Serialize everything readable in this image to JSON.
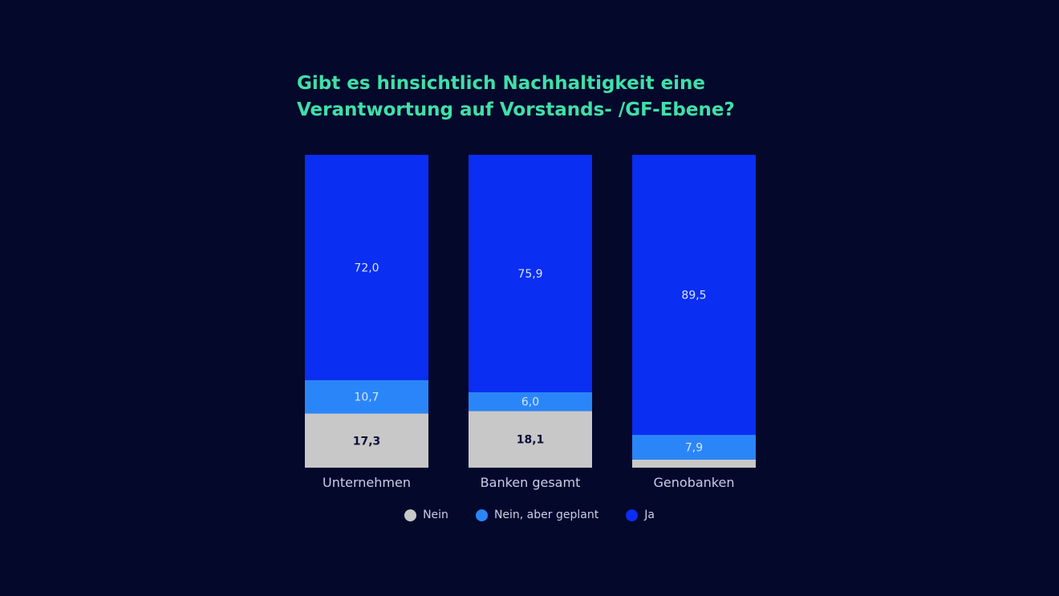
{
  "title_lines": [
    "Gibt es hinsichtlich Nachhaltigkeit eine",
    "Verantwortung auf Vorstands- /GF-Ebene?"
  ],
  "colors": {
    "background": "#04082b",
    "title": "#3fe0a8",
    "nein": "#c8c8c8",
    "geplant": "#2a86f8",
    "ja": "#0a2ef2"
  },
  "chart_data": {
    "type": "bar",
    "stacked": true,
    "orientation": "vertical",
    "categories": [
      "Unternehmen",
      "Banken gesamt",
      "Genobanken"
    ],
    "series": [
      {
        "name": "Nein",
        "values": [
          17.3,
          18.1,
          2.6
        ],
        "labels": [
          "17,3",
          "18,1",
          ""
        ]
      },
      {
        "name": "Nein, aber geplant",
        "values": [
          10.7,
          6.0,
          7.9
        ],
        "labels": [
          "10,7",
          "6,0",
          "7,9"
        ]
      },
      {
        "name": "Ja",
        "values": [
          72.0,
          75.9,
          89.5
        ],
        "labels": [
          "72,0",
          "75,9",
          "89,5"
        ]
      }
    ],
    "legend_position": "bottom",
    "grid": false
  }
}
